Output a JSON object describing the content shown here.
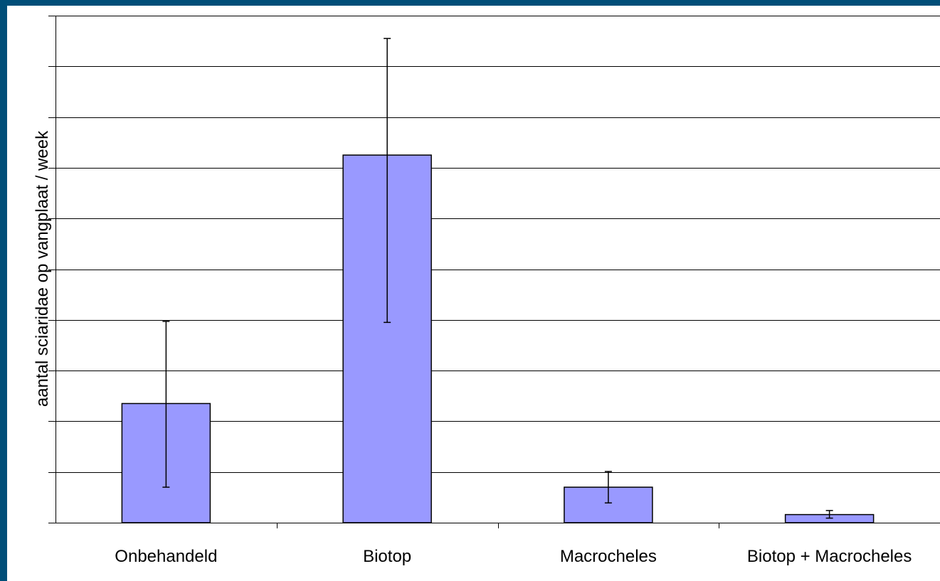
{
  "colors": {
    "frame": "#004e78",
    "bar_fill": "#9999ff",
    "bar_stroke": "#000000",
    "grid": "#000000"
  },
  "chart_data": {
    "type": "bar",
    "title": "",
    "xlabel": "",
    "ylabel": "aantal sciaridae op vangplaat / week",
    "categories": [
      "Onbehandeld",
      "Biotop",
      "Macrocheles",
      "Biotop + Macrocheles"
    ],
    "values": [
      2.35,
      7.25,
      0.7,
      0.16
    ],
    "error_low": [
      0.7,
      3.95,
      0.39,
      0.09
    ],
    "error_high": [
      3.97,
      9.55,
      1.01,
      0.24
    ],
    "ylim": [
      0,
      10
    ],
    "ytick_step": 1,
    "ytick_labels_shown": false,
    "grid": true,
    "legend": "none"
  }
}
